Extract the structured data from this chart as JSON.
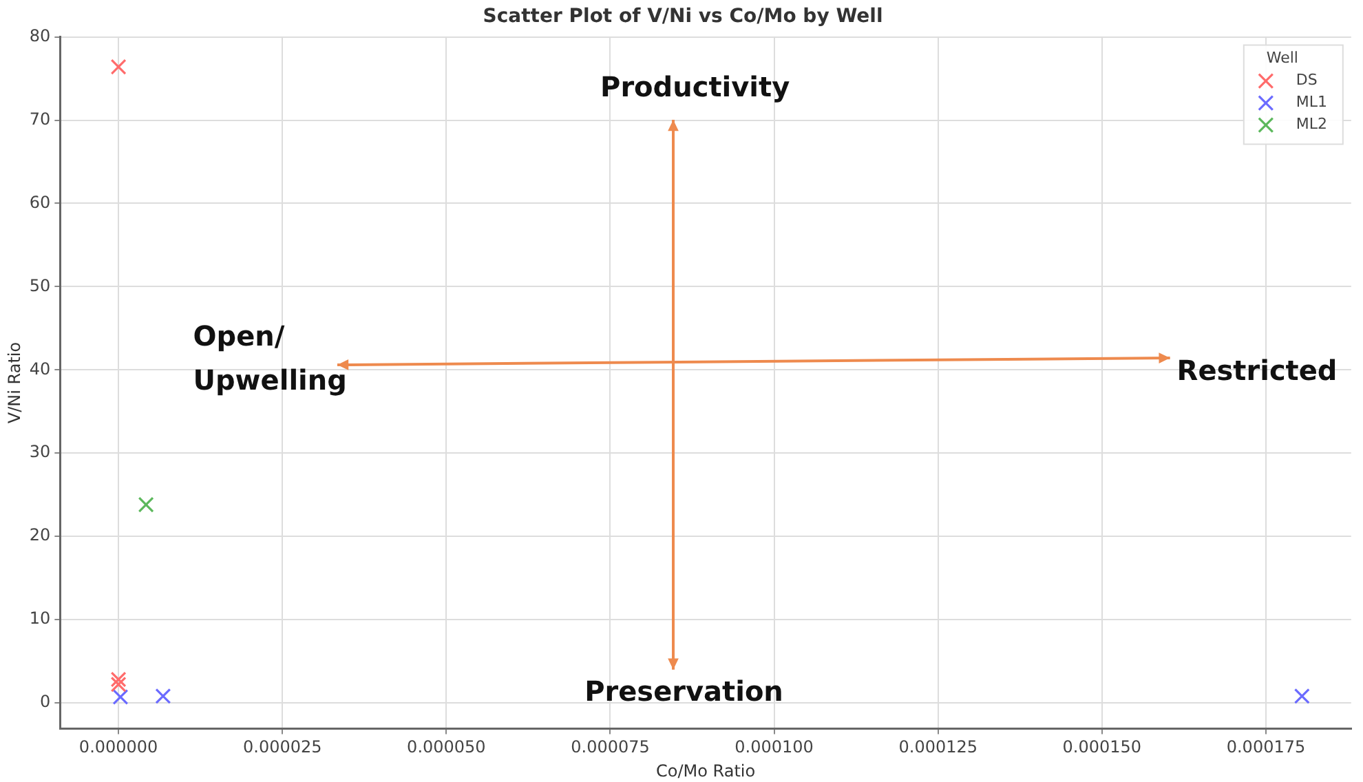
{
  "chart_data": {
    "type": "scatter",
    "title": "Scatter Plot of V/Ni vs Co/Mo by Well",
    "xlabel": "Co/Mo Ratio",
    "ylabel": "V/Ni Ratio",
    "legend_title": "Well",
    "series": [
      {
        "name": "DS",
        "color": "#ff6b6b",
        "x": [
          0,
          0,
          0
        ],
        "values": [
          76.4,
          2.8,
          2.2
        ]
      },
      {
        "name": "ML1",
        "color": "#6b6bff",
        "x": [
          3e-07,
          6.8e-06,
          0.0001805
        ],
        "values": [
          0.7,
          0.8,
          0.8
        ]
      },
      {
        "name": "ML2",
        "color": "#5cb85c",
        "x": [
          4.2e-06
        ],
        "values": [
          23.8
        ]
      }
    ],
    "annotations": [
      "Productivity",
      "Preservation",
      "Open/\nUpwelling",
      "Restricted"
    ],
    "xlim": [
      -8.9e-06,
      0.000188
    ],
    "ylim": [
      -3.1,
      80
    ],
    "xticks": [
      {
        "value": 0,
        "label": "0.000000"
      },
      {
        "value": 2.5e-05,
        "label": "0.000025"
      },
      {
        "value": 5e-05,
        "label": "0.000050"
      },
      {
        "value": 7.5e-05,
        "label": "0.000075"
      },
      {
        "value": 0.0001,
        "label": "0.000100"
      },
      {
        "value": 0.000125,
        "label": "0.000125"
      },
      {
        "value": 0.00015,
        "label": "0.000150"
      },
      {
        "value": 0.000175,
        "label": "0.000175"
      }
    ],
    "yticks": [
      0,
      10,
      20,
      30,
      40,
      50,
      60,
      70,
      80
    ],
    "grid": true,
    "legend": "top right",
    "marker": "cross"
  }
}
